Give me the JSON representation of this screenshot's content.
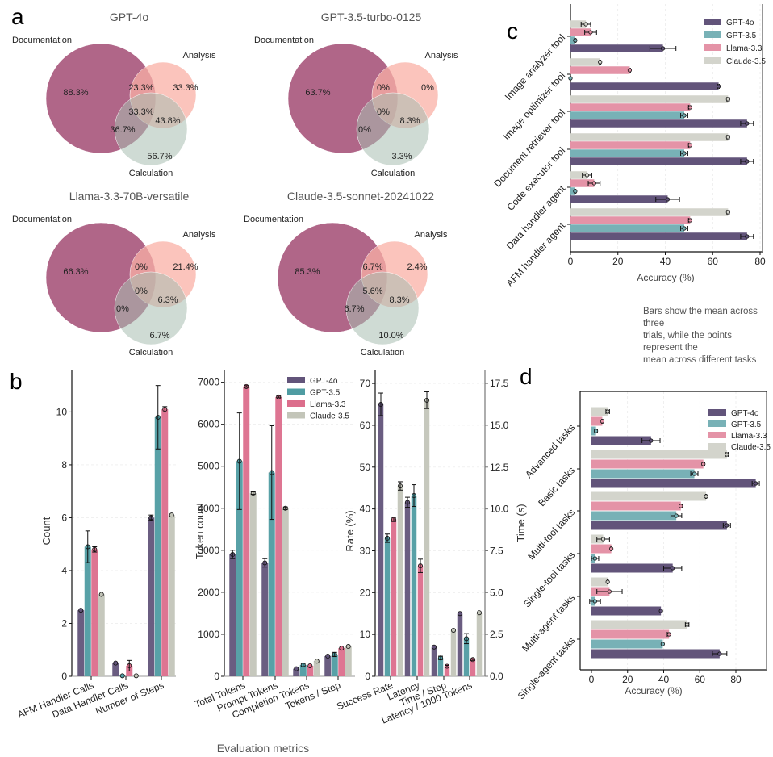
{
  "panel_labels": {
    "a": "a",
    "b": "b",
    "c": "c",
    "d": "d"
  },
  "colors": {
    "gpt4o": "#62547a",
    "gpt35": "#4f9ca2",
    "llama": "#dc6e8c",
    "claude": "#c3c5b9",
    "gpt35_light": "#78b1b6",
    "llama_light": "#e493a7",
    "claude_light": "#d3d4cc",
    "venn_doc": "#b06688",
    "venn_analysis": "#f9b0a6",
    "venn_calc": "#a8beb0"
  },
  "legend": [
    "GPT-4o",
    "GPT-3.5",
    "Llama-3.3",
    "Claude-3.5"
  ],
  "caption_c": [
    "Bars show the mean across three",
    "trials, while the points represent the",
    "mean across different tasks"
  ],
  "chart_data": [
    {
      "type": "venn",
      "title": "GPT-4o",
      "sets": [
        "Documentation",
        "Analysis",
        "Calculation"
      ],
      "regions": {
        "doc": "88.3%",
        "doc_analysis": "23.3%",
        "analysis": "33.3%",
        "all": "33.3%",
        "analysis_calc": "43.8%",
        "doc_calc": "36.7%",
        "calc": "56.7%"
      }
    },
    {
      "type": "venn",
      "title": "GPT-3.5-turbo-0125",
      "sets": [
        "Documentation",
        "Analysis",
        "Calculation"
      ],
      "regions": {
        "doc": "63.7%",
        "doc_analysis": "0%",
        "analysis": "0%",
        "all": "0%",
        "analysis_calc": "8.3%",
        "doc_calc": "0%",
        "calc": "3.3%"
      }
    },
    {
      "type": "venn",
      "title": "Llama-3.3-70B-versatile",
      "sets": [
        "Documentation",
        "Analysis",
        "Calculation"
      ],
      "regions": {
        "doc": "66.3%",
        "doc_analysis": "0%",
        "analysis": "21.4%",
        "all": "0%",
        "analysis_calc": "6.3%",
        "doc_calc": "0%",
        "calc": "6.7%"
      }
    },
    {
      "type": "venn",
      "title": "Claude-3.5-sonnet-20241022",
      "sets": [
        "Documentation",
        "Analysis",
        "Calculation"
      ],
      "regions": {
        "doc": "85.3%",
        "doc_analysis": "6.7%",
        "analysis": "2.4%",
        "all": "5.6%",
        "analysis_calc": "8.3%",
        "doc_calc": "6.7%",
        "calc": "10.0%"
      }
    },
    {
      "type": "bar",
      "ylabel": "Count",
      "ylim": [
        0,
        11.6
      ],
      "yticks": [
        "0",
        "2",
        "4",
        "6",
        "8",
        "10"
      ],
      "categories": [
        "AFM Handler Calls",
        "Data Handler Calls",
        "Number of Steps"
      ],
      "series": [
        {
          "name": "GPT-4o",
          "values": [
            2.5,
            0.5,
            6.0
          ],
          "err": [
            0,
            0,
            0.1
          ]
        },
        {
          "name": "GPT-3.5",
          "values": [
            4.9,
            0.02,
            9.8
          ],
          "err": [
            0.6,
            0,
            1.2
          ]
        },
        {
          "name": "Llama-3.3",
          "values": [
            4.8,
            0.4,
            10.1
          ],
          "err": [
            0.1,
            0.2,
            0.1
          ]
        },
        {
          "name": "Claude-3.5",
          "values": [
            3.1,
            0.02,
            6.1
          ],
          "err": [
            0,
            0,
            0
          ]
        }
      ]
    },
    {
      "type": "bar",
      "ylabel": "Token count",
      "ylim": [
        0,
        7300
      ],
      "yticks": [
        "0",
        "1000",
        "2000",
        "3000",
        "4000",
        "5000",
        "6000",
        "7000"
      ],
      "categories": [
        "Total Tokens",
        "Prompt Tokens",
        "Completion Tokens",
        "Tokens / Step"
      ],
      "legend_position": "top-right",
      "series": [
        {
          "name": "GPT-4o",
          "values": [
            2900,
            2700,
            180,
            480
          ],
          "err": [
            100,
            100,
            0,
            0
          ]
        },
        {
          "name": "GPT-3.5",
          "values": [
            5120,
            4850,
            270,
            520
          ],
          "err": [
            1150,
            1115,
            40,
            50
          ]
        },
        {
          "name": "Llama-3.3",
          "values": [
            6900,
            6650,
            250,
            670
          ],
          "err": [
            20,
            20,
            0,
            0
          ]
        },
        {
          "name": "Claude-3.5",
          "values": [
            4360,
            4000,
            360,
            710
          ],
          "err": [
            30,
            30,
            0,
            0
          ]
        }
      ]
    },
    {
      "type": "bar",
      "ylabel": "Rate (%)",
      "ylabel_right": "Time (s)",
      "ylim": [
        0,
        73.3
      ],
      "ylim_right": [
        0,
        18.3
      ],
      "yticks": [
        "0",
        "10",
        "20",
        "30",
        "40",
        "50",
        "60",
        "70"
      ],
      "yticks_right": [
        "0.0",
        "2.5",
        "5.0",
        "7.5",
        "10.0",
        "12.5",
        "15.0",
        "17.5"
      ],
      "categories": [
        "Success Rate",
        "Latency",
        "Time / Step",
        "Latency / 1000 Tokens"
      ],
      "category_axis": [
        "left",
        "right",
        "right",
        "right"
      ],
      "series": [
        {
          "name": "GPT-4o",
          "values": [
            65.0,
            10.4,
            1.75,
            3.75
          ],
          "err": [
            2.7,
            0.3,
            0,
            0
          ]
        },
        {
          "name": "GPT-3.5",
          "values": [
            33.0,
            10.8,
            1.1,
            2.25
          ],
          "err": [
            1,
            0.65,
            0.1,
            0.3
          ]
        },
        {
          "name": "Llama-3.3",
          "values": [
            37.5,
            6.6,
            0.6,
            1.0
          ],
          "err": [
            0.5,
            0.4,
            0.05,
            0.05
          ]
        },
        {
          "name": "Claude-3.5",
          "values": [
            45.5,
            16.5,
            2.75,
            3.8
          ],
          "err": [
            1,
            0.5,
            0,
            0
          ]
        }
      ]
    },
    {
      "type": "bar",
      "orientation": "horizontal",
      "xlabel": "Accuracy (%)",
      "xlim": [
        0,
        80
      ],
      "xticks": [
        "0",
        "20",
        "40",
        "60",
        "80"
      ],
      "legend_position": "top-right",
      "categories": [
        "Image analyzer tool",
        "Image optimizer tool",
        "Document retriever tool",
        "Code executor tool",
        "Data handler agent",
        "AFM handler agent"
      ],
      "series": [
        {
          "name": "GPT-4o",
          "values": [
            39,
            62.5,
            74.5,
            74.5,
            41,
            74.5
          ],
          "err": [
            5.5,
            0.3,
            2.7,
            2.7,
            5,
            2.7
          ]
        },
        {
          "name": "GPT-3.5",
          "values": [
            2,
            0,
            48,
            48,
            2,
            48
          ],
          "err": [
            0.3,
            0,
            1.5,
            1.5,
            0.3,
            1.5
          ]
        },
        {
          "name": "Llama-3.3",
          "values": [
            8.5,
            25,
            50.5,
            50.5,
            10,
            50.5
          ],
          "err": [
            2.5,
            0.3,
            0.7,
            0.7,
            2.5,
            0.7
          ]
        },
        {
          "name": "Claude-3.5",
          "values": [
            6.5,
            12.5,
            66.5,
            66.5,
            7,
            66.5
          ],
          "err": [
            2,
            0.3,
            0.5,
            0.5,
            2,
            0.5
          ]
        }
      ]
    },
    {
      "type": "bar",
      "orientation": "horizontal",
      "xlabel": "Accuracy (%)",
      "xlim": [
        -5,
        93
      ],
      "xticks": [
        "0",
        "20",
        "40",
        "60",
        "80"
      ],
      "legend_position": "top-right",
      "categories": [
        "Advanced tasks",
        "Basic tasks",
        "Multi-tool tasks",
        "Single-tool tasks",
        "Multi-agent tasks",
        "Single-agent tasks"
      ],
      "series": [
        {
          "name": "GPT-4o",
          "values": [
            33,
            91,
            75,
            45,
            38.5,
            71
          ],
          "err": [
            5,
            2,
            2,
            5,
            0.3,
            4
          ]
        },
        {
          "name": "GPT-3.5",
          "values": [
            2.5,
            57,
            47,
            2,
            2,
            39.5
          ],
          "err": [
            0.8,
            2,
            3,
            2,
            3,
            0.5
          ]
        },
        {
          "name": "Llama-3.3",
          "values": [
            6,
            62,
            49.5,
            11,
            10,
            43
          ],
          "err": [
            0.3,
            0.8,
            1,
            0.3,
            7,
            1
          ]
        },
        {
          "name": "Claude-3.5",
          "values": [
            9,
            75,
            63.5,
            6.5,
            9,
            53
          ],
          "err": [
            1,
            0.8,
            0.3,
            3.5,
            0.3,
            1
          ]
        }
      ]
    }
  ],
  "xlabel_b": "Evaluation metrics"
}
